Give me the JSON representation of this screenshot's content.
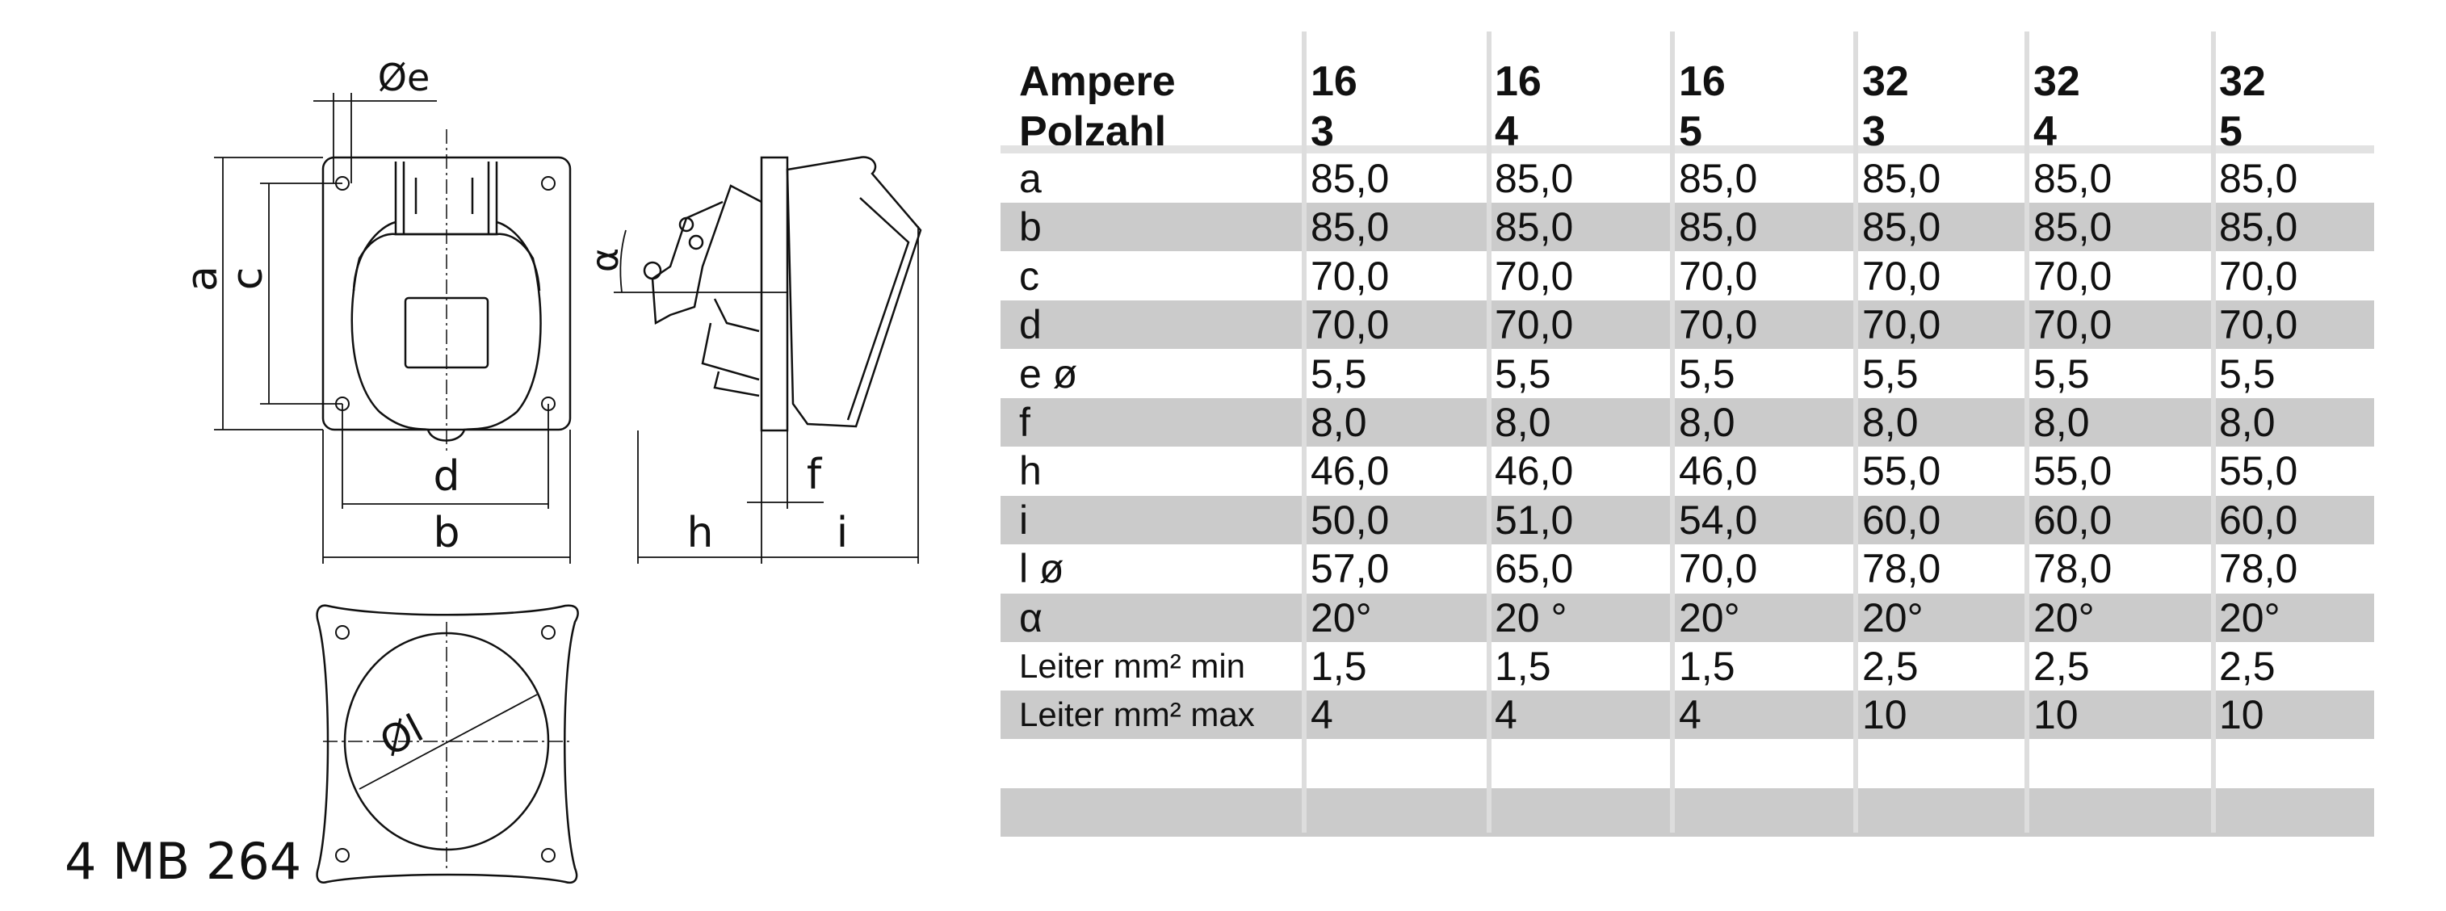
{
  "model": "4 MB 264",
  "drawing_labels": {
    "a": "a",
    "b": "b",
    "c": "c",
    "d": "d",
    "e": "Øe",
    "f": "f",
    "h": "h",
    "i": "i",
    "alpha": "α",
    "l": "Øl"
  },
  "table": {
    "header": {
      "label_line1": "Ampere",
      "label_line2": "Polzahl",
      "columns": [
        {
          "ampere": "16",
          "poles": "3"
        },
        {
          "ampere": "16",
          "poles": "4"
        },
        {
          "ampere": "16",
          "poles": "5"
        },
        {
          "ampere": "32",
          "poles": "3"
        },
        {
          "ampere": "32",
          "poles": "4"
        },
        {
          "ampere": "32",
          "poles": "5"
        }
      ]
    },
    "rows": [
      {
        "label": "a",
        "values": [
          "85,0",
          "85,0",
          "85,0",
          "85,0",
          "85,0",
          "85,0"
        ]
      },
      {
        "label": "b",
        "values": [
          "85,0",
          "85,0",
          "85,0",
          "85,0",
          "85,0",
          "85,0"
        ]
      },
      {
        "label": "c",
        "values": [
          "70,0",
          "70,0",
          "70,0",
          "70,0",
          "70,0",
          "70,0"
        ]
      },
      {
        "label": "d",
        "values": [
          "70,0",
          "70,0",
          "70,0",
          "70,0",
          "70,0",
          "70,0"
        ]
      },
      {
        "label": "e ø",
        "values": [
          "5,5",
          "5,5",
          "5,5",
          "5,5",
          "5,5",
          "5,5"
        ]
      },
      {
        "label": "f",
        "values": [
          "8,0",
          "8,0",
          "8,0",
          "8,0",
          "8,0",
          "8,0"
        ]
      },
      {
        "label": "h",
        "values": [
          "46,0",
          "46,0",
          "46,0",
          "55,0",
          "55,0",
          "55,0"
        ]
      },
      {
        "label": "i",
        "values": [
          "50,0",
          "51,0",
          "54,0",
          "60,0",
          "60,0",
          "60,0"
        ]
      },
      {
        "label": "l ø",
        "values": [
          "57,0",
          "65,0",
          "70,0",
          "78,0",
          "78,0",
          "78,0"
        ]
      },
      {
        "label": "α",
        "values": [
          "20°",
          "20 °",
          "20°",
          "20°",
          "20°",
          "20°"
        ]
      },
      {
        "label": "Leiter mm² min",
        "values": [
          "1,5",
          "1,5",
          "1,5",
          "2,5",
          "2,5",
          "2,5"
        ]
      },
      {
        "label": "Leiter mm² max",
        "values": [
          "4",
          "4",
          "4",
          "10",
          "10",
          "10"
        ]
      },
      {
        "label": "",
        "values": [
          "",
          "",
          "",
          "",
          "",
          ""
        ]
      },
      {
        "label": "",
        "values": [
          "",
          "",
          "",
          "",
          "",
          ""
        ]
      }
    ]
  },
  "colors": {
    "stripe": "#cbcbcb",
    "grid": "#dddddd",
    "separator": "#e2e2e2"
  }
}
